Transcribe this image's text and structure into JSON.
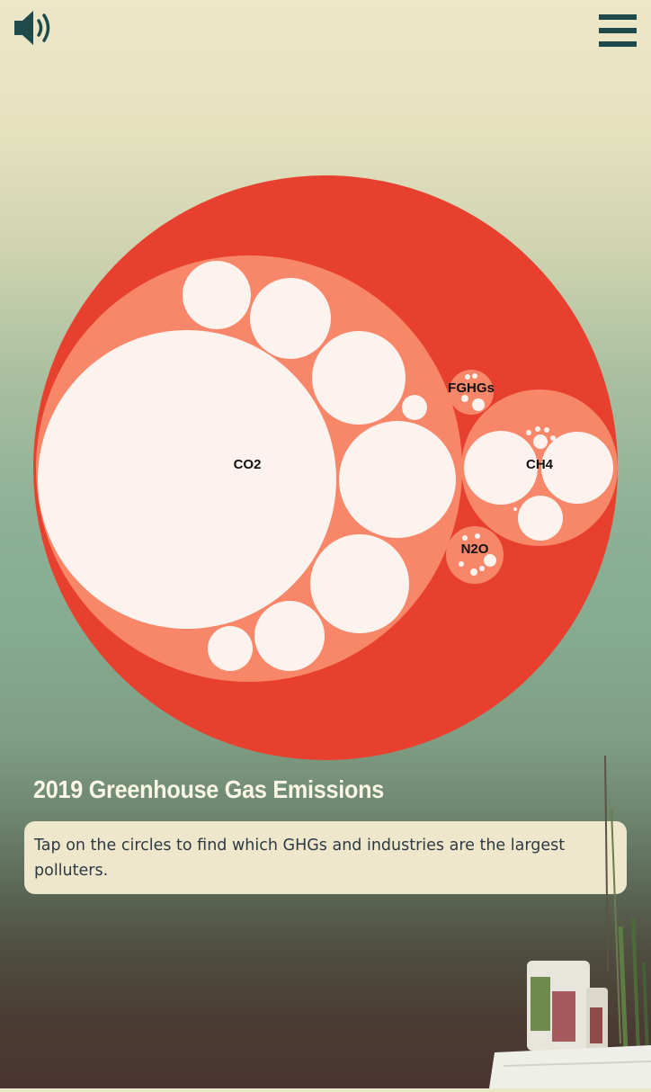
{
  "controls": {
    "sound_icon": "speaker-volume-icon",
    "menu_icon": "hamburger-menu-icon",
    "icon_color": "#1f4a4c"
  },
  "colors": {
    "outer_circle": "#e8402e",
    "group_circle": "#f8876a",
    "leaf_circle": "#fdf3ee"
  },
  "chart_data": {
    "type": "bubble",
    "title": "2019 Greenhouse Gas Emissions",
    "groups": [
      {
        "name": "CO2",
        "label": "CO2"
      },
      {
        "name": "CH4",
        "label": "CH4"
      },
      {
        "name": "FGHGs",
        "label": "FGHGs"
      },
      {
        "name": "N2O",
        "label": "N2O"
      }
    ]
  },
  "title": "2019 Greenhouse Gas Emissions",
  "instructions": "Tap on the circles to find which GHGs and industries are the largest polluters."
}
